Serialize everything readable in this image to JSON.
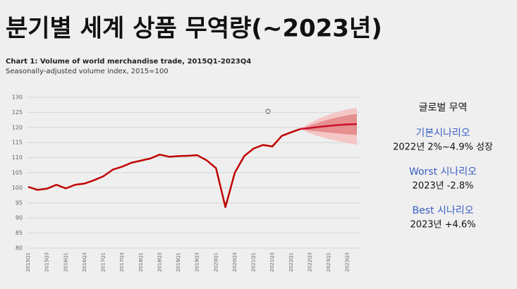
{
  "header": {
    "title": "분기별 세계 상품 무역량(~2023년)"
  },
  "chart_data": {
    "type": "line",
    "title": "Chart 1: Volume of world merchandise trade, 2015Q1-2023Q4",
    "subtitle": "Seasonally-adjusted volume index, 2015=100",
    "categories": [
      "2015Q1",
      null,
      "2015Q3",
      null,
      "2016Q1",
      null,
      "2016Q3",
      null,
      "2017Q1",
      null,
      "2017Q3",
      null,
      "2018Q1",
      null,
      "2018Q3",
      null,
      "2019Q1",
      null,
      "2019Q3",
      null,
      "2020Q1",
      null,
      "2020Q3",
      null,
      "2021Q1",
      null,
      "2021Q3",
      null,
      "2022Q1",
      null,
      "2022Q3",
      null,
      "2023Q1",
      null,
      "2023Q3",
      null
    ],
    "series": [
      {
        "color": "#c00000",
        "values": [
          100.3,
          99.3,
          99.7,
          101,
          99.8,
          101,
          101.4,
          102.5,
          103.8,
          106,
          107,
          108.3,
          109,
          109.7,
          111,
          110.3,
          110.5,
          110.6,
          110.8,
          109.1,
          106.5,
          93.6,
          105,
          110.5,
          113,
          114.2,
          113.7,
          117.2,
          118.4,
          119.5,
          null,
          null,
          null,
          null,
          null,
          null
        ]
      },
      {
        "color": "#c8102e",
        "values": [
          null,
          null,
          null,
          null,
          null,
          null,
          null,
          null,
          null,
          null,
          null,
          null,
          null,
          null,
          null,
          null,
          null,
          null,
          null,
          null,
          null,
          null,
          null,
          null,
          null,
          null,
          null,
          null,
          null,
          119.5,
          119.8,
          120.2,
          120.5,
          120.8,
          121,
          121.1
        ]
      }
    ],
    "bands": [
      {
        "color": "#f5c6c6",
        "lower": [
          null,
          null,
          null,
          null,
          null,
          null,
          null,
          null,
          null,
          null,
          null,
          null,
          null,
          null,
          null,
          null,
          null,
          null,
          null,
          null,
          null,
          null,
          null,
          null,
          null,
          null,
          null,
          null,
          null,
          119.5,
          118,
          117,
          116.2,
          115.5,
          114.8,
          114.2
        ],
        "upper": [
          null,
          null,
          null,
          null,
          null,
          null,
          null,
          null,
          null,
          null,
          null,
          null,
          null,
          null,
          null,
          null,
          null,
          null,
          null,
          null,
          null,
          null,
          null,
          null,
          null,
          null,
          null,
          null,
          null,
          119.5,
          121.5,
          123,
          124.2,
          125.2,
          126,
          126.5
        ]
      },
      {
        "color": "#e58f8f",
        "lower": [
          null,
          null,
          null,
          null,
          null,
          null,
          null,
          null,
          null,
          null,
          null,
          null,
          null,
          null,
          null,
          null,
          null,
          null,
          null,
          null,
          null,
          null,
          null,
          null,
          null,
          null,
          null,
          null,
          null,
          119.5,
          118.9,
          118.6,
          118.3,
          118,
          117.7,
          117.5
        ],
        "upper": [
          null,
          null,
          null,
          null,
          null,
          null,
          null,
          null,
          null,
          null,
          null,
          null,
          null,
          null,
          null,
          null,
          null,
          null,
          null,
          null,
          null,
          null,
          null,
          null,
          null,
          null,
          null,
          null,
          null,
          119.5,
          120.7,
          121.7,
          122.6,
          123.4,
          124,
          124.5
        ]
      }
    ],
    "ylim": [
      80,
      130
    ],
    "yticks": [
      80,
      85,
      90,
      95,
      100,
      105,
      110,
      115,
      120,
      125,
      130
    ],
    "grid": true
  },
  "panel": {
    "heading": "글로벌 무역",
    "scenarios": [
      {
        "name": "기본시나리오",
        "detail": "2022년 2%~4.9% 성장"
      },
      {
        "name": "Worst 시나리오",
        "detail": "2023년 -2.8%"
      },
      {
        "name": "Best 시나리오",
        "detail": "2023년 +4.6%"
      }
    ]
  }
}
